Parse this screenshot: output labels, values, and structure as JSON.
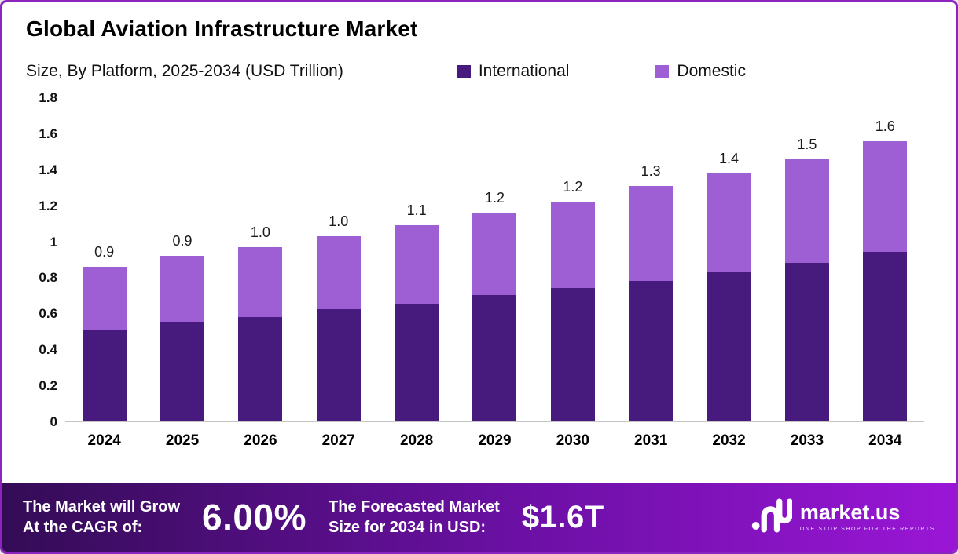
{
  "chart_data": {
    "type": "bar",
    "stacked": true,
    "title": "Global Aviation Infrastructure Market",
    "subtitle": "Size, By Platform, 2025-2034 (USD Trillion)",
    "legend_position": "top",
    "grid": false,
    "categories": [
      "2024",
      "2025",
      "2026",
      "2027",
      "2028",
      "2029",
      "2030",
      "2031",
      "2032",
      "2033",
      "2034"
    ],
    "series": [
      {
        "name": "International",
        "color": "#471a7e",
        "values": [
          0.51,
          0.55,
          0.58,
          0.62,
          0.65,
          0.7,
          0.74,
          0.78,
          0.83,
          0.88,
          0.94
        ]
      },
      {
        "name": "Domestic",
        "color": "#9e5fd4",
        "values": [
          0.35,
          0.37,
          0.39,
          0.41,
          0.44,
          0.46,
          0.48,
          0.53,
          0.55,
          0.58,
          0.62
        ]
      }
    ],
    "totals_labels": [
      "0.9",
      "0.9",
      "1.0",
      "1.0",
      "1.1",
      "1.2",
      "1.2",
      "1.3",
      "1.4",
      "1.5",
      "1.6"
    ],
    "xlabel": "",
    "ylabel": "",
    "ylim": [
      0,
      1.8
    ],
    "yticks": [
      0,
      0.2,
      0.4,
      0.6,
      0.8,
      1,
      1.2,
      1.4,
      1.6,
      1.8
    ]
  },
  "footer": {
    "cagr_label_line1": "The Market will Grow",
    "cagr_label_line2": "At the CAGR of:",
    "cagr_value": "6.00%",
    "forecast_label_line1": "The Forecasted Market",
    "forecast_label_line2": "Size for 2034 in USD:",
    "forecast_value": "$1.6T",
    "brand_name": "market.us",
    "brand_tagline": "ONE STOP SHOP FOR THE REPORTS"
  }
}
